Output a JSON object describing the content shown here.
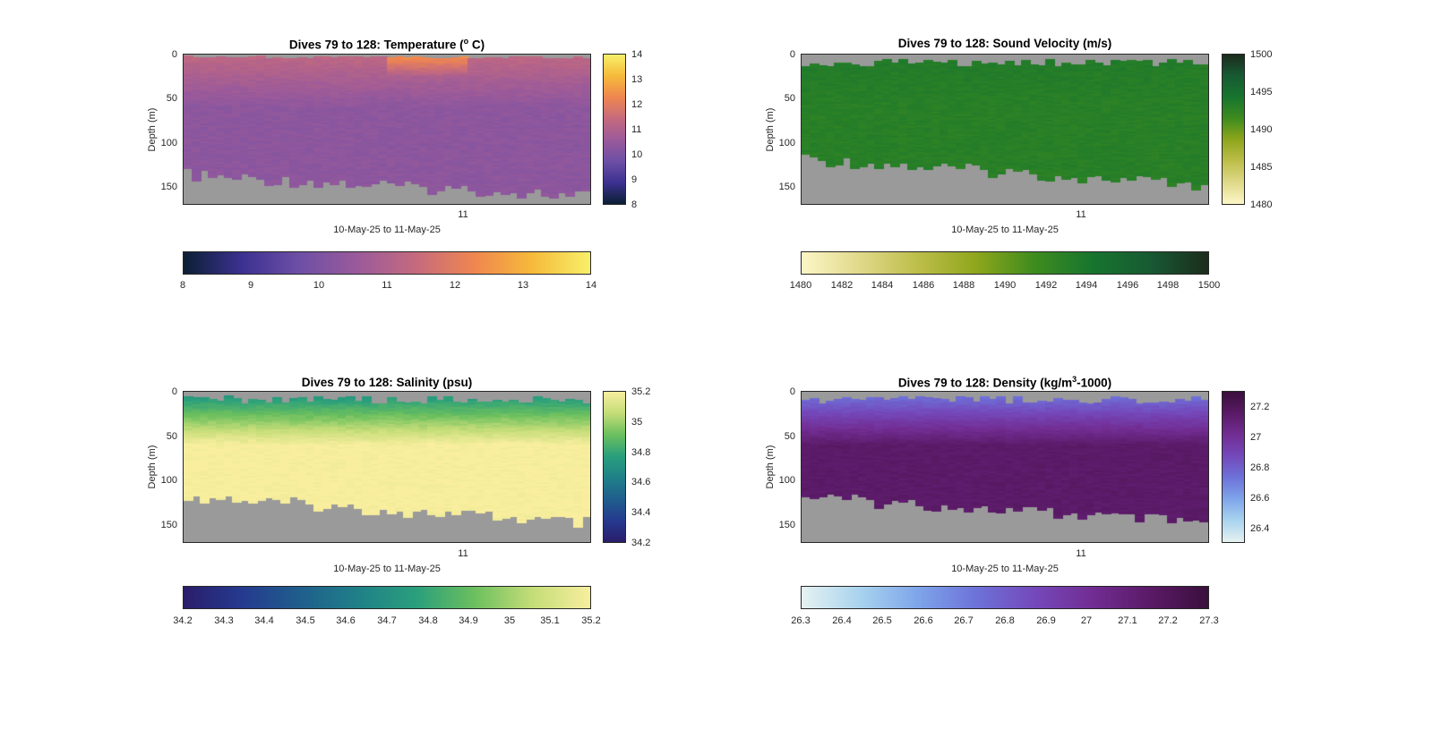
{
  "figure": {
    "background": "#ffffff",
    "land_color": "#9a9a9a"
  },
  "chart_data": [
    {
      "id": "temperature",
      "type": "heatmap",
      "title_text": "Dives 79 to 128: Temperature (",
      "title_sup": "o",
      "title_tail": " C)",
      "ylabel": "Depth (m)",
      "xlabel": "10-May-25 to 11-May-25",
      "y_ticks": [
        "0",
        "50",
        "100",
        "150"
      ],
      "x_ticks": [
        "11"
      ],
      "ylim": [
        0,
        170
      ],
      "y_reversed": true,
      "clim": [
        8,
        14
      ],
      "colormap": [
        "#0b1f33",
        "#3c3191",
        "#6e4fa6",
        "#9b5a9a",
        "#c56a7e",
        "#ef8650",
        "#f6ba3a",
        "#f7f06a"
      ],
      "cb_right_ticks": [
        "14",
        "13",
        "12",
        "11",
        "10",
        "9",
        "8"
      ],
      "cb_bottom_ticks": [
        "8",
        "9",
        "10",
        "11",
        "12",
        "13",
        "14"
      ],
      "dives": 50,
      "typical_surface_value": 11.3,
      "typical_deep_value": 10.3,
      "warm_surface_event_near_x_tick": 12.8,
      "seafloor_depth_range_m": [
        130,
        170
      ]
    },
    {
      "id": "sound_velocity",
      "type": "heatmap",
      "title_text": "Dives 79 to 128: Sound Velocity (m/s)",
      "title_sup": "",
      "title_tail": "",
      "ylabel": "Depth (m)",
      "xlabel": "10-May-25 to 11-May-25",
      "y_ticks": [
        "0",
        "50",
        "100",
        "150"
      ],
      "x_ticks": [
        "11"
      ],
      "ylim": [
        0,
        170
      ],
      "y_reversed": true,
      "clim": [
        1480,
        1500
      ],
      "colormap": [
        "#fcf6c6",
        "#e0d98a",
        "#bdbe4a",
        "#8fa61c",
        "#3e8c1e",
        "#17752e",
        "#175a33",
        "#1c2c1d"
      ],
      "cb_right_ticks": [
        "1500",
        "1495",
        "1490",
        "1485",
        "1480"
      ],
      "cb_bottom_ticks": [
        "1480",
        "1482",
        "1484",
        "1486",
        "1488",
        "1490",
        "1492",
        "1494",
        "1496",
        "1498",
        "1500"
      ],
      "dives": 50,
      "typical_surface_value": 1493.5,
      "typical_deep_value": 1493.0,
      "seafloor_depth_range_m": [
        110,
        160
      ]
    },
    {
      "id": "salinity",
      "type": "heatmap",
      "title_text": "Dives 79 to 128: Salinity (psu)",
      "title_sup": "",
      "title_tail": "",
      "ylabel": "Depth (m)",
      "xlabel": "10-May-25 to 11-May-25",
      "y_ticks": [
        "0",
        "50",
        "100",
        "150"
      ],
      "x_ticks": [
        "11"
      ],
      "ylim": [
        0,
        170
      ],
      "y_reversed": true,
      "clim": [
        34.2,
        35.2
      ],
      "colormap": [
        "#2a1d6b",
        "#253a8f",
        "#1f5e8c",
        "#1f8088",
        "#2a9f7c",
        "#6bbf5e",
        "#c4dd78",
        "#f8ee9e"
      ],
      "cb_right_ticks": [
        "35.2",
        "35",
        "34.8",
        "34.6",
        "34.4",
        "34.2"
      ],
      "cb_bottom_ticks": [
        "34.2",
        "34.3",
        "34.4",
        "34.5",
        "34.6",
        "34.7",
        "34.8",
        "34.9",
        "35",
        "35.1",
        "35.2"
      ],
      "dives": 50,
      "typical_surface_value": 34.7,
      "typical_deep_value": 35.2,
      "seafloor_depth_range_m": [
        110,
        160
      ]
    },
    {
      "id": "density",
      "type": "heatmap",
      "title_text": "Dives 79 to 128: Density (kg/m",
      "title_sup": "3",
      "title_tail": "-1000)",
      "ylabel": "Depth (m)",
      "xlabel": "10-May-25 to 11-May-25",
      "y_ticks": [
        "0",
        "50",
        "100",
        "150"
      ],
      "x_ticks": [
        "11"
      ],
      "ylim": [
        0,
        170
      ],
      "y_reversed": true,
      "clim": [
        26.3,
        27.3
      ],
      "colormap": [
        "#e6f2f1",
        "#a9d3ee",
        "#7ea5ea",
        "#6d72d9",
        "#7449bb",
        "#722d93",
        "#5a1a66",
        "#3a0f3c"
      ],
      "cb_right_ticks": [
        "27.2",
        "27",
        "26.8",
        "26.6",
        "26.4"
      ],
      "cb_bottom_ticks": [
        "26.3",
        "26.4",
        "26.5",
        "26.6",
        "26.7",
        "26.8",
        "26.9",
        "27",
        "27.1",
        "27.2",
        "27.3"
      ],
      "dives": 50,
      "typical_surface_value": 26.7,
      "typical_deep_value": 27.15,
      "seafloor_depth_range_m": [
        110,
        160
      ]
    }
  ]
}
